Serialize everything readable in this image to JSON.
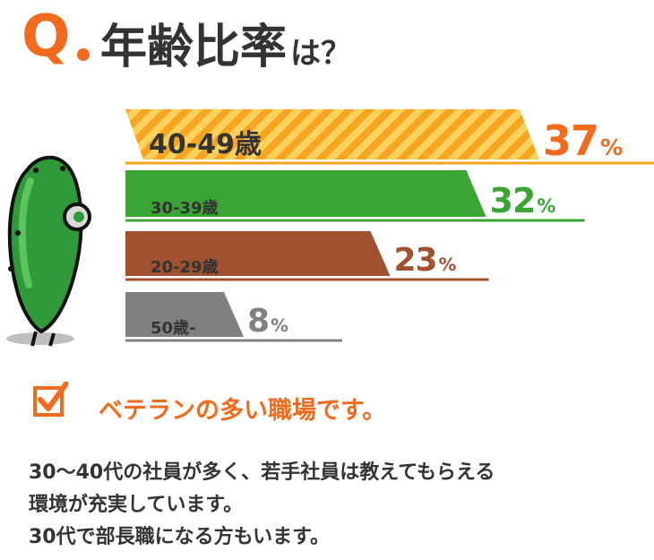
{
  "header": {
    "q": "Q",
    "title": "年齢比率",
    "suffix": "は？"
  },
  "chart_data": {
    "type": "bar",
    "categories": [
      "40-49歳",
      "30-39歳",
      "20-29歳",
      "50歳-"
    ],
    "values": [
      37,
      32,
      23,
      8
    ],
    "percent_labels": [
      "37",
      "32",
      "23",
      "8"
    ],
    "unit": "%",
    "colors": [
      "#f7a521",
      "#3aa534",
      "#a0512f",
      "#808080"
    ],
    "ylim": [
      0,
      37
    ]
  },
  "verdict": {
    "text": "ベテランの多い職場です。",
    "icon": "checkbox-icon"
  },
  "description": {
    "lines": [
      "30〜40代の社員が多く、若手社員は教えてもらえる",
      "環境が充実しています。",
      "30代で部長職になる方もいます。"
    ]
  },
  "mascot": {
    "icon": "cucumber-mascot-icon"
  }
}
